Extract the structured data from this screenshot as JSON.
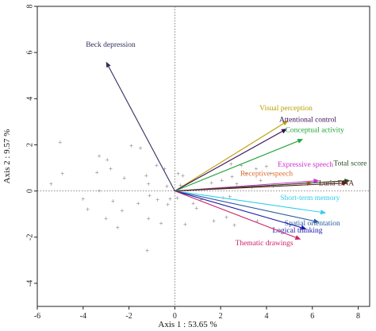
{
  "chart_data": {
    "type": "scatter",
    "subtype": "pca-biplot",
    "xlabel": "Axis 1 : 53.65 %",
    "ylabel": "Axis 2 : 9.57 %",
    "xlim": [
      -6,
      8.5
    ],
    "ylim": [
      -5,
      8
    ],
    "x_ticks": [
      -6,
      -4,
      -2,
      0,
      2,
      4,
      6,
      8
    ],
    "y_ticks": [
      -4,
      -2,
      0,
      2,
      4,
      6,
      8
    ],
    "reference_lines": {
      "x0": true,
      "y0": true,
      "style": "dotted"
    },
    "grid": false,
    "vectors": [
      {
        "name": "Beck depression",
        "x": -3.0,
        "y": 5.6,
        "color": "#2e2e5e",
        "label_offset": [
          0.2,
          0.65
        ]
      },
      {
        "name": "Visual perception",
        "x": 4.95,
        "y": 3.05,
        "color": "#b8a000",
        "label_offset": [
          -0.1,
          0.45
        ]
      },
      {
        "name": "Attentional control",
        "x": 4.9,
        "y": 2.7,
        "color": "#3a0a5a",
        "label_offset": [
          0.9,
          0.3
        ]
      },
      {
        "name": "Conceptual activity",
        "x": 5.6,
        "y": 2.25,
        "color": "#22a53b",
        "label_offset": [
          0.5,
          0.3
        ]
      },
      {
        "name": "Expressive speech",
        "x": 6.3,
        "y": 0.45,
        "color": "#cc33cc",
        "label_offset": [
          -0.6,
          0.6
        ]
      },
      {
        "name": "Receptive speech",
        "x": 6.0,
        "y": 0.35,
        "color": "#e07030",
        "label_offset": [
          -2.0,
          0.3
        ]
      },
      {
        "name": "Total score",
        "x": 7.65,
        "y": 0.45,
        "color": "#1f4d1f",
        "label_offset": [
          0.0,
          0.65
        ]
      },
      {
        "name": "Luria-DNA",
        "x": 7.55,
        "y": 0.35,
        "color": "#5a2020",
        "label_offset": [
          -0.5,
          -0.1
        ]
      },
      {
        "name": "Short-term memory",
        "x": 6.6,
        "y": -0.95,
        "color": "#33ccee",
        "label_offset": [
          -0.7,
          0.55
        ]
      },
      {
        "name": "Spatial orientation",
        "x": 6.3,
        "y": -1.35,
        "color": "#2a5aa0",
        "label_offset": [
          -0.3,
          -0.15
        ]
      },
      {
        "name": "Logical thinking",
        "x": 5.75,
        "y": -1.65,
        "color": "#1818a8",
        "label_offset": [
          -0.4,
          -0.15
        ]
      },
      {
        "name": "Thematic drawings",
        "x": 5.5,
        "y": -2.1,
        "color": "#cc2266",
        "label_offset": [
          -1.6,
          -0.25
        ]
      }
    ],
    "observations": [
      [
        -5.4,
        0.3
      ],
      [
        -4.9,
        0.75
      ],
      [
        -5.0,
        2.1
      ],
      [
        -4.0,
        -0.35
      ],
      [
        -3.8,
        -0.8
      ],
      [
        -3.3,
        1.5
      ],
      [
        -3.4,
        0.8
      ],
      [
        -3.3,
        0.0
      ],
      [
        -3.0,
        -1.2
      ],
      [
        -2.95,
        1.35
      ],
      [
        -2.8,
        0.95
      ],
      [
        -2.7,
        -0.45
      ],
      [
        -2.5,
        -1.6
      ],
      [
        -2.2,
        0.55
      ],
      [
        -2.3,
        -0.85
      ],
      [
        -1.9,
        1.95
      ],
      [
        -1.5,
        1.85
      ],
      [
        -1.6,
        -0.55
      ],
      [
        -1.25,
        0.65
      ],
      [
        -1.15,
        0.3
      ],
      [
        -1.1,
        -0.2
      ],
      [
        -1.15,
        -1.2
      ],
      [
        -1.2,
        -2.6
      ],
      [
        -0.8,
        1.1
      ],
      [
        -0.75,
        -0.4
      ],
      [
        -0.6,
        -1.4
      ],
      [
        -0.45,
        0.95
      ],
      [
        -0.35,
        0.2
      ],
      [
        -0.3,
        -0.6
      ],
      [
        -0.2,
        -0.35
      ],
      [
        0.15,
        0.75
      ],
      [
        0.25,
        0.25
      ],
      [
        0.35,
        0.65
      ],
      [
        0.1,
        -0.3
      ],
      [
        0.45,
        -1.45
      ],
      [
        0.8,
        -0.55
      ],
      [
        0.95,
        -0.75
      ],
      [
        1.15,
        -0.4
      ],
      [
        1.6,
        0.35
      ],
      [
        1.7,
        -1.3
      ],
      [
        2.05,
        0.45
      ],
      [
        2.1,
        -0.3
      ],
      [
        2.25,
        -1.15
      ],
      [
        2.45,
        1.15
      ],
      [
        2.5,
        0.6
      ],
      [
        2.4,
        -0.25
      ],
      [
        2.6,
        -1.5
      ],
      [
        2.7,
        0.3
      ],
      [
        2.9,
        1.1
      ],
      [
        3.1,
        0.75
      ],
      [
        3.35,
        0.15
      ],
      [
        3.55,
        0.95
      ],
      [
        3.6,
        -1.3
      ],
      [
        3.75,
        0.45
      ],
      [
        4.0,
        1.05
      ],
      [
        4.2,
        0.75
      ],
      [
        4.3,
        0.2
      ]
    ]
  }
}
